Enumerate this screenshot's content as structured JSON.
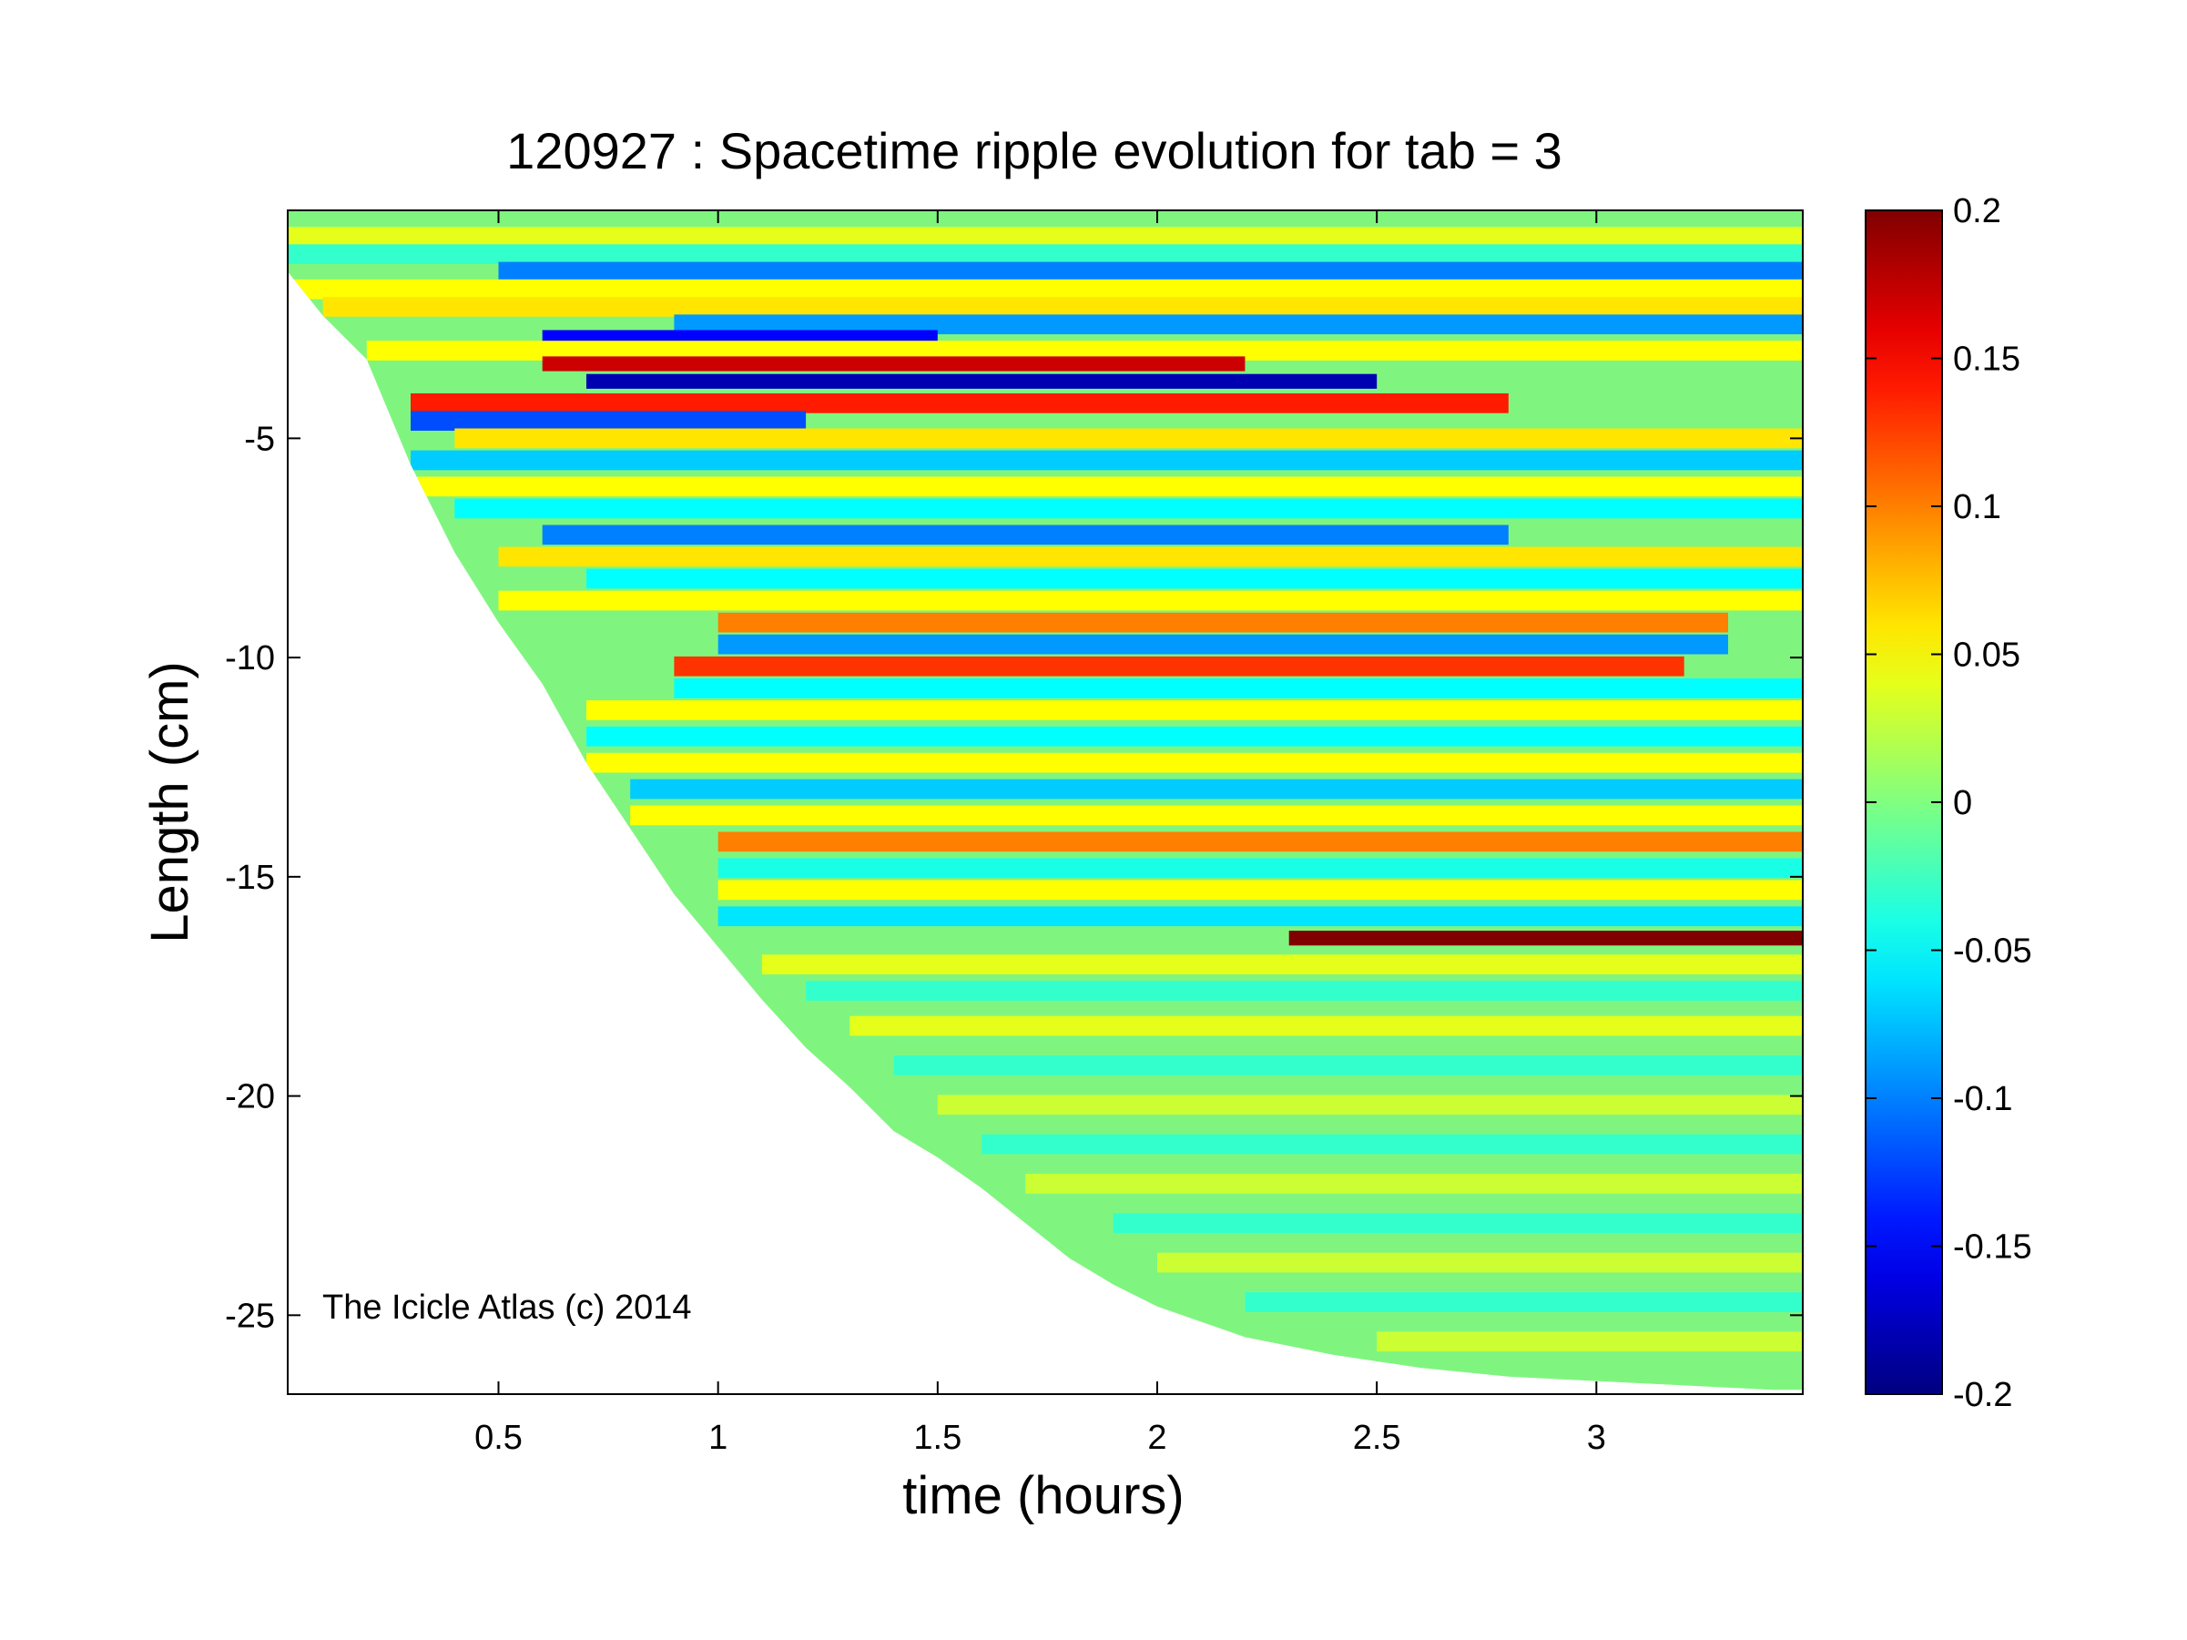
{
  "chart_data": {
    "type": "heatmap",
    "title": "120927 : Spacetime ripple evolution for tab = 3",
    "xlabel": "time (hours)",
    "ylabel": "Length (cm)",
    "xlim": [
      0.02,
      3.47
    ],
    "ylim": [
      -26.8,
      0.2
    ],
    "xticks": [
      0.5,
      1,
      1.5,
      2,
      2.5,
      3
    ],
    "xtick_labels": [
      "0.5",
      "1",
      "1.5",
      "2",
      "2.5",
      "3"
    ],
    "yticks": [
      -5,
      -10,
      -15,
      -20,
      -25
    ],
    "ytick_labels": [
      "-5",
      "-10",
      "-15",
      "-20",
      "-25"
    ],
    "colorbar": {
      "colormap": "jet",
      "clim": [
        -0.2,
        0.2
      ],
      "ticks": [
        0.2,
        0.15,
        0.1,
        0.05,
        0,
        -0.05,
        -0.1,
        -0.15,
        -0.2
      ],
      "tick_labels": [
        "0.2",
        "0.15",
        "0.1",
        "0.05",
        "0",
        "-0.05",
        "-0.1",
        "-0.15",
        "-0.2"
      ]
    },
    "annotation": "The Icicle Atlas (c) 2014",
    "grid": false,
    "icicle_length_boundary": {
      "time_hours": [
        0.02,
        0.1,
        0.2,
        0.3,
        0.4,
        0.5,
        0.6,
        0.7,
        0.8,
        0.9,
        1.0,
        1.1,
        1.2,
        1.3,
        1.4,
        1.5,
        1.6,
        1.7,
        1.8,
        1.9,
        2.0,
        2.2,
        2.4,
        2.6,
        2.8,
        3.0,
        3.2,
        3.4,
        3.47
      ],
      "length_cm": [
        -1.2,
        -2.2,
        -3.2,
        -5.6,
        -7.6,
        -9.2,
        -10.6,
        -12.4,
        -13.9,
        -15.4,
        -16.6,
        -17.8,
        -18.9,
        -19.8,
        -20.8,
        -21.4,
        -22.1,
        -22.9,
        -23.7,
        -24.3,
        -24.8,
        -25.5,
        -25.9,
        -26.2,
        -26.4,
        -26.5,
        -26.6,
        -26.7,
        -26.7
      ]
    },
    "ripple_bands": [
      {
        "y": -0.4,
        "value": 0.04,
        "t_start": 0.02,
        "t_end": 3.47
      },
      {
        "y": -0.8,
        "value": -0.03,
        "t_start": 0.02,
        "t_end": 3.47
      },
      {
        "y": -1.2,
        "value": -0.1,
        "t_start": 0.5,
        "t_end": 3.47
      },
      {
        "y": -1.6,
        "value": 0.05,
        "t_start": 0.02,
        "t_end": 3.47
      },
      {
        "y": -2.0,
        "value": 0.06,
        "t_start": 0.1,
        "t_end": 3.47
      },
      {
        "y": -2.4,
        "value": -0.09,
        "t_start": 0.9,
        "t_end": 3.47
      },
      {
        "y": -2.7,
        "value": -0.15,
        "t_start": 0.6,
        "t_end": 1.5
      },
      {
        "y": -3.0,
        "value": 0.05,
        "t_start": 0.2,
        "t_end": 3.47
      },
      {
        "y": -3.3,
        "value": 0.17,
        "t_start": 0.6,
        "t_end": 2.2
      },
      {
        "y": -3.7,
        "value": -0.18,
        "t_start": 0.7,
        "t_end": 2.5
      },
      {
        "y": -4.2,
        "value": 0.14,
        "t_start": 0.3,
        "t_end": 2.8
      },
      {
        "y": -4.6,
        "value": -0.12,
        "t_start": 0.3,
        "t_end": 1.2
      },
      {
        "y": -5.0,
        "value": 0.06,
        "t_start": 0.4,
        "t_end": 3.47
      },
      {
        "y": -5.5,
        "value": -0.07,
        "t_start": 0.3,
        "t_end": 3.47
      },
      {
        "y": -6.1,
        "value": 0.05,
        "t_start": 0.3,
        "t_end": 3.47
      },
      {
        "y": -6.6,
        "value": -0.05,
        "t_start": 0.4,
        "t_end": 3.47
      },
      {
        "y": -7.2,
        "value": -0.1,
        "t_start": 0.6,
        "t_end": 2.8
      },
      {
        "y": -7.7,
        "value": 0.06,
        "t_start": 0.5,
        "t_end": 3.47
      },
      {
        "y": -8.2,
        "value": -0.05,
        "t_start": 0.7,
        "t_end": 3.47
      },
      {
        "y": -8.7,
        "value": 0.05,
        "t_start": 0.5,
        "t_end": 3.47
      },
      {
        "y": -9.2,
        "value": 0.1,
        "t_start": 1.0,
        "t_end": 3.3
      },
      {
        "y": -9.7,
        "value": -0.09,
        "t_start": 1.0,
        "t_end": 3.3
      },
      {
        "y": -10.2,
        "value": 0.13,
        "t_start": 0.9,
        "t_end": 3.2
      },
      {
        "y": -10.7,
        "value": -0.05,
        "t_start": 0.9,
        "t_end": 3.47
      },
      {
        "y": -11.2,
        "value": 0.05,
        "t_start": 0.7,
        "t_end": 3.47
      },
      {
        "y": -11.8,
        "value": -0.05,
        "t_start": 0.7,
        "t_end": 3.47
      },
      {
        "y": -12.4,
        "value": 0.05,
        "t_start": 0.7,
        "t_end": 3.47
      },
      {
        "y": -13.0,
        "value": -0.07,
        "t_start": 0.8,
        "t_end": 3.47
      },
      {
        "y": -13.6,
        "value": 0.05,
        "t_start": 0.8,
        "t_end": 3.47
      },
      {
        "y": -14.2,
        "value": 0.1,
        "t_start": 1.0,
        "t_end": 3.47
      },
      {
        "y": -14.8,
        "value": -0.04,
        "t_start": 1.0,
        "t_end": 3.47
      },
      {
        "y": -15.3,
        "value": 0.05,
        "t_start": 1.0,
        "t_end": 3.47
      },
      {
        "y": -15.9,
        "value": -0.06,
        "t_start": 1.0,
        "t_end": 3.47
      },
      {
        "y": -16.4,
        "value": 0.2,
        "t_start": 2.3,
        "t_end": 3.47
      },
      {
        "y": -17.0,
        "value": 0.04,
        "t_start": 1.1,
        "t_end": 3.47
      },
      {
        "y": -17.6,
        "value": -0.03,
        "t_start": 1.2,
        "t_end": 3.47
      },
      {
        "y": -18.4,
        "value": 0.04,
        "t_start": 1.3,
        "t_end": 3.47
      },
      {
        "y": -19.3,
        "value": -0.03,
        "t_start": 1.4,
        "t_end": 3.47
      },
      {
        "y": -20.2,
        "value": 0.03,
        "t_start": 1.5,
        "t_end": 3.47
      },
      {
        "y": -21.1,
        "value": -0.03,
        "t_start": 1.6,
        "t_end": 3.47
      },
      {
        "y": -22.0,
        "value": 0.03,
        "t_start": 1.7,
        "t_end": 3.47
      },
      {
        "y": -22.9,
        "value": -0.03,
        "t_start": 1.9,
        "t_end": 3.47
      },
      {
        "y": -23.8,
        "value": 0.03,
        "t_start": 2.0,
        "t_end": 3.47
      },
      {
        "y": -24.7,
        "value": -0.03,
        "t_start": 2.2,
        "t_end": 3.47
      },
      {
        "y": -25.6,
        "value": 0.03,
        "t_start": 2.5,
        "t_end": 3.47
      }
    ]
  }
}
